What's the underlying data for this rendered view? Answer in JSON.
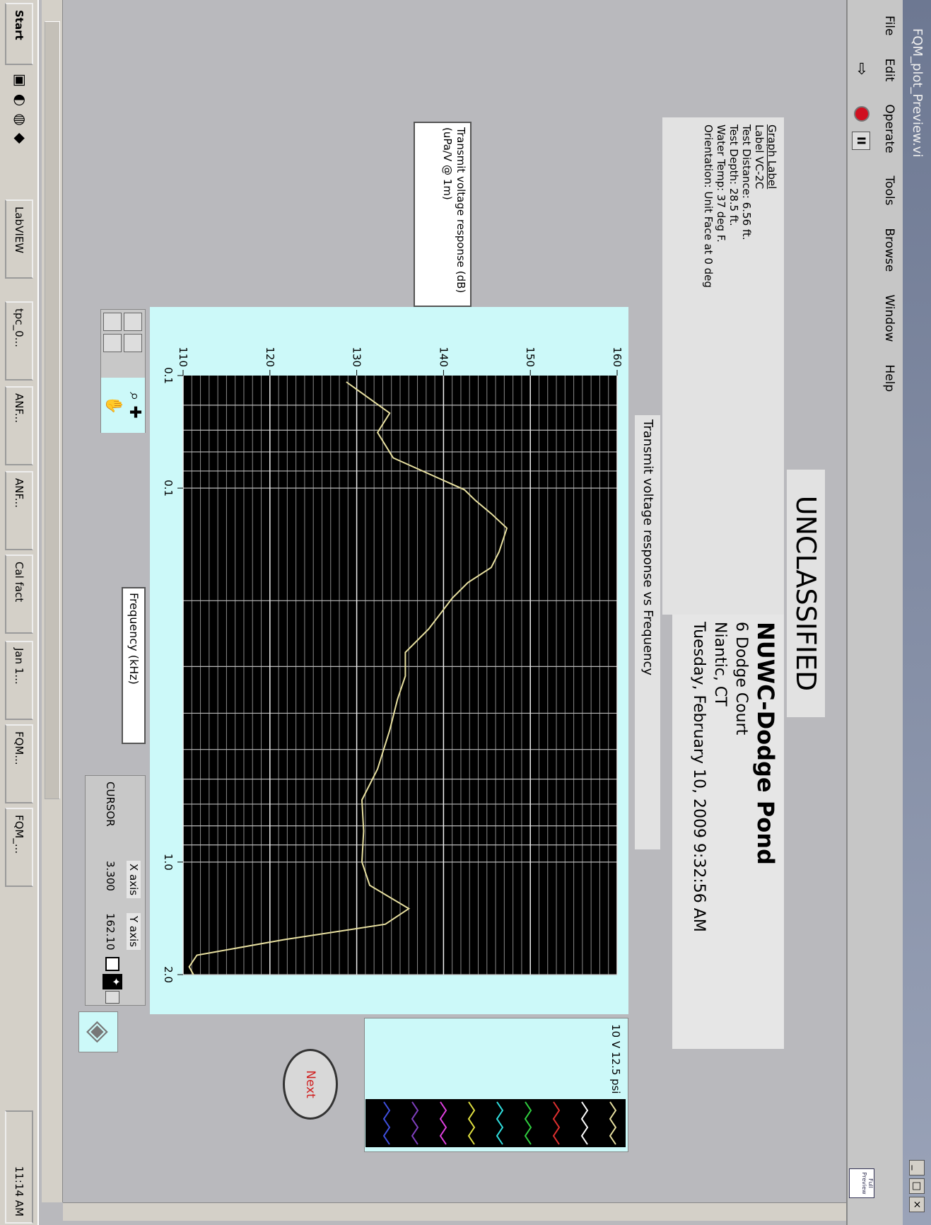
{
  "window": {
    "title": "FQM_plot_Preview.vi",
    "menu": [
      "File",
      "Edit",
      "Operate",
      "Tools",
      "Browse",
      "Window",
      "Help"
    ],
    "full_preview": "Full Preview"
  },
  "classification": "UNCLASSIFIED",
  "graph_label": {
    "heading": "Graph Label",
    "lines": [
      "Label VC-2C",
      "Test Distance: 6.56 ft.",
      "Test Depth: 28.5 ft.",
      "Water Temp: 37 deg F.",
      "Orientation: Unit Face at 0 deg"
    ]
  },
  "location": {
    "name": "NUWC-Dodge Pond",
    "lines": [
      "6 Dodge Court",
      "Niantic, CT",
      "Tuesday, February 10, 2009 9:32:56 AM"
    ]
  },
  "chart_data": {
    "type": "line",
    "title": "Transmit voltage response vs Frequency",
    "x_label": "Frequency (kHz)",
    "y_label": "Transmit voltage response (dB) (uPa/V @ 1m)",
    "x": [
      0.052,
      0.063,
      0.071,
      0.083,
      0.101,
      0.108,
      0.117,
      0.128,
      0.148,
      0.163,
      0.179,
      0.197,
      0.238,
      0.275,
      0.318,
      0.367,
      0.444,
      0.564,
      0.682,
      0.826,
      1.0,
      1.154,
      1.332,
      1.466,
      1.613,
      1.774,
      1.906,
      2.0
    ],
    "series": [
      {
        "name": "10 V 12.5 psi",
        "color": "#e8e0a0",
        "values": [
          128.8,
          133.8,
          132.4,
          134.2,
          142.4,
          143.7,
          145.5,
          147.3,
          146.4,
          145.5,
          142.8,
          141.0,
          138.3,
          135.6,
          135.6,
          134.7,
          133.8,
          132.4,
          130.6,
          130.8,
          130.6,
          131.5,
          136.0,
          133.3,
          121.6,
          111.6,
          110.7,
          111.2
        ]
      }
    ],
    "log_x": true,
    "xlim": [
      0.05,
      2.0
    ],
    "xticks": [
      {
        "value": 0.05,
        "label": "0.1"
      },
      0.1,
      {
        "value": 1,
        "label": "1.0"
      },
      {
        "value": 2,
        "label": "2.0"
      }
    ],
    "ylim": [
      110,
      160
    ],
    "yticks": [
      110,
      120,
      130,
      140,
      150,
      160
    ],
    "grid": true,
    "xgrid": [
      0.06,
      0.07,
      0.08,
      0.09,
      0.1,
      0.2,
      0.3,
      0.4,
      0.5,
      0.6,
      0.7,
      0.8,
      0.9,
      1,
      2
    ],
    "ygrid": [
      111,
      112,
      113,
      114,
      115,
      116,
      117,
      118,
      119,
      121,
      122,
      123,
      124,
      125,
      126,
      127,
      128,
      129,
      131,
      132,
      133,
      134,
      135,
      136,
      137,
      138,
      139,
      141,
      142,
      143,
      144,
      145,
      146,
      147,
      148,
      149,
      151,
      152,
      153,
      154,
      155,
      156,
      157,
      158,
      159
    ]
  },
  "cursor": {
    "x_header": "X axis",
    "y_header": "Y axis",
    "label": "CURSOR",
    "x": "3.300",
    "y": "162.10"
  },
  "next_button": "Next",
  "taskbar": {
    "start": "Start",
    "items": [
      "LabVIEW",
      "tpc_0...",
      "ANF...",
      "ANF...",
      "Cal fact",
      "Jan 1...",
      "FQM...",
      "FQM_..."
    ],
    "clock": "11:14 AM"
  }
}
